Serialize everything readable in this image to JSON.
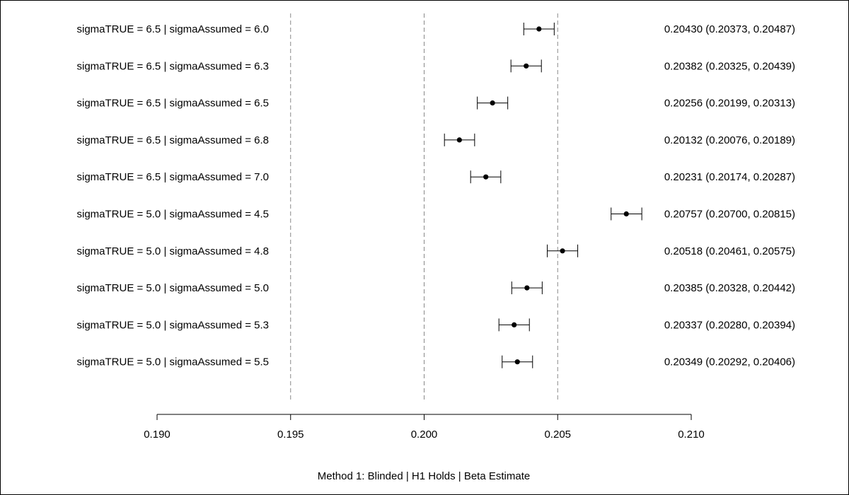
{
  "chart_data": {
    "type": "forest",
    "xlabel": "Method 1: Blinded | H1 Holds | Beta Estimate",
    "xlim": [
      0.19,
      0.21
    ],
    "ticks": [
      0.19,
      0.195,
      0.2,
      0.205,
      0.21
    ],
    "tick_labels": [
      "0.190",
      "0.195",
      "0.200",
      "0.205",
      "0.210"
    ],
    "reference_lines": [
      0.195,
      0.2,
      0.205
    ],
    "rows": [
      {
        "label": "sigmaTRUE = 6.5 | sigmaAssumed = 6.0",
        "estimate": 0.2043,
        "lower": 0.20373,
        "upper": 0.20487,
        "text": "0.20430 (0.20373, 0.20487)"
      },
      {
        "label": "sigmaTRUE = 6.5 | sigmaAssumed = 6.3",
        "estimate": 0.20382,
        "lower": 0.20325,
        "upper": 0.20439,
        "text": "0.20382 (0.20325, 0.20439)"
      },
      {
        "label": "sigmaTRUE = 6.5 | sigmaAssumed = 6.5",
        "estimate": 0.20256,
        "lower": 0.20199,
        "upper": 0.20313,
        "text": "0.20256 (0.20199, 0.20313)"
      },
      {
        "label": "sigmaTRUE = 6.5 | sigmaAssumed = 6.8",
        "estimate": 0.20132,
        "lower": 0.20076,
        "upper": 0.20189,
        "text": "0.20132 (0.20076, 0.20189)"
      },
      {
        "label": "sigmaTRUE = 6.5 | sigmaAssumed = 7.0",
        "estimate": 0.20231,
        "lower": 0.20174,
        "upper": 0.20287,
        "text": "0.20231 (0.20174, 0.20287)"
      },
      {
        "label": "sigmaTRUE = 5.0 | sigmaAssumed = 4.5",
        "estimate": 0.20757,
        "lower": 0.207,
        "upper": 0.20815,
        "text": "0.20757 (0.20700, 0.20815)"
      },
      {
        "label": "sigmaTRUE = 5.0 | sigmaAssumed = 4.8",
        "estimate": 0.20518,
        "lower": 0.20461,
        "upper": 0.20575,
        "text": "0.20518 (0.20461, 0.20575)"
      },
      {
        "label": "sigmaTRUE = 5.0 | sigmaAssumed = 5.0",
        "estimate": 0.20385,
        "lower": 0.20328,
        "upper": 0.20442,
        "text": "0.20385 (0.20328, 0.20442)"
      },
      {
        "label": "sigmaTRUE = 5.0 | sigmaAssumed = 5.3",
        "estimate": 0.20337,
        "lower": 0.2028,
        "upper": 0.20394,
        "text": "0.20337 (0.20280, 0.20394)"
      },
      {
        "label": "sigmaTRUE = 5.0 | sigmaAssumed = 5.5",
        "estimate": 0.20349,
        "lower": 0.20292,
        "upper": 0.20406,
        "text": "0.20349 (0.20292, 0.20406)"
      }
    ]
  }
}
